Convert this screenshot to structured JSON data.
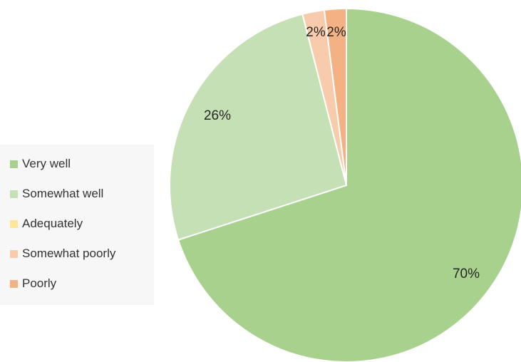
{
  "chart_data": {
    "type": "pie",
    "title": "",
    "categories": [
      "Very well",
      "Somewhat well",
      "Adequately",
      "Somewhat poorly",
      "Poorly"
    ],
    "values": [
      70,
      26,
      0,
      2,
      2
    ],
    "labels": [
      "70%",
      "26%",
      "",
      "2%",
      "2%"
    ],
    "colors": [
      "#a9d18e",
      "#c5e0b4",
      "#ffe699",
      "#f8cbad",
      "#f4b183"
    ],
    "legend_position": "left",
    "start_angle_deg": 0,
    "direction": "clockwise"
  }
}
